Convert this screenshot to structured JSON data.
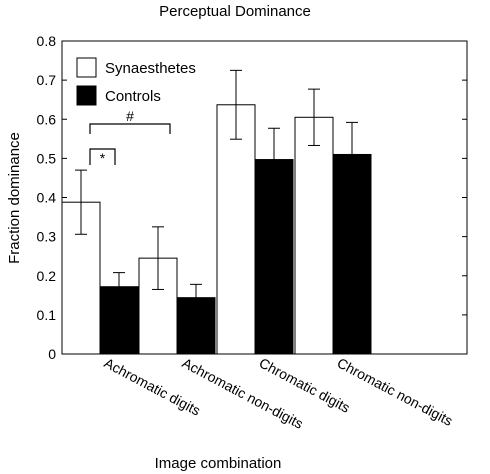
{
  "chart_data": {
    "type": "bar",
    "title": "Perceptual Dominance",
    "xlabel": "Image combination",
    "ylabel": "Fraction dominance",
    "ylim": [
      0,
      0.8
    ],
    "yticks": [
      "0",
      "0.1",
      "0.2",
      "0.3",
      "0.4",
      "0.5",
      "0.6",
      "0.7",
      "0.8"
    ],
    "categories": [
      "Achromatic digits",
      "Achromatic non-digits",
      "Chromatic digits",
      "Chromatic non-digits"
    ],
    "series": [
      {
        "name": "Synaesthetes",
        "color": "#ffffff",
        "values": [
          0.388,
          0.245,
          0.637,
          0.605
        ],
        "errors": [
          0.082,
          0.08,
          0.088,
          0.072
        ]
      },
      {
        "name": "Controls",
        "color": "#000000",
        "values": [
          0.172,
          0.144,
          0.497,
          0.51
        ],
        "errors": [
          0.036,
          0.034,
          0.08,
          0.082
        ]
      }
    ],
    "annotations": [
      {
        "text": "*"
      },
      {
        "text": "#"
      }
    ],
    "legend_position": "top-left",
    "grid": false
  }
}
